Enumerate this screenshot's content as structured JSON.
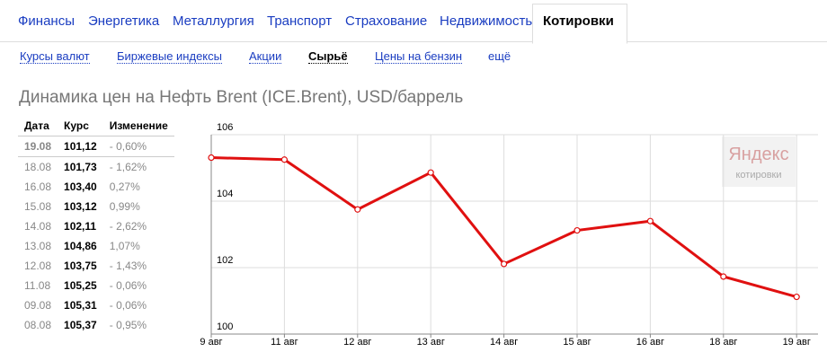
{
  "nav": [
    "Финансы",
    "Энергетика",
    "Металлургия",
    "Транспорт",
    "Страхование",
    "Недвижимость",
    "Котировки"
  ],
  "subnav": [
    "Курсы валют",
    "Биржевые индексы",
    "Акции",
    "Сырьё",
    "Цены на бензин",
    "ещё"
  ],
  "title": "Динамика цен на Нефть Brent (ICE.Brent), USD/баррель",
  "table": {
    "headers": [
      "Дата",
      "Курс",
      "Изменение"
    ],
    "rows": [
      [
        "19.08",
        "101,12",
        "- 0,60%"
      ],
      [
        "18.08",
        "101,73",
        "- 1,62%"
      ],
      [
        "16.08",
        "103,40",
        "0,27%"
      ],
      [
        "15.08",
        "103,12",
        "0,99%"
      ],
      [
        "14.08",
        "102,11",
        "- 2,62%"
      ],
      [
        "13.08",
        "104,86",
        "1,07%"
      ],
      [
        "12.08",
        "103,75",
        "- 1,43%"
      ],
      [
        "11.08",
        "105,25",
        "- 0,06%"
      ],
      [
        "09.08",
        "105,31",
        "- 0,06%"
      ],
      [
        "08.08",
        "105,37",
        "- 0,95%"
      ]
    ]
  },
  "chart_data": {
    "type": "line",
    "categories": [
      "9 авг",
      "11 авг",
      "12 авг",
      "13 авг",
      "14 авг",
      "15 авг",
      "16 авг",
      "18 авг",
      "19 авг"
    ],
    "values": [
      105.31,
      105.25,
      103.75,
      104.86,
      102.11,
      103.12,
      103.4,
      101.73,
      101.12
    ],
    "color": "#e01010",
    "ylim": [
      100,
      106
    ],
    "yticks": [
      100,
      102,
      104,
      106
    ],
    "grid": true,
    "watermark": {
      "brand": "Яндекс",
      "caption": "котировки"
    }
  }
}
